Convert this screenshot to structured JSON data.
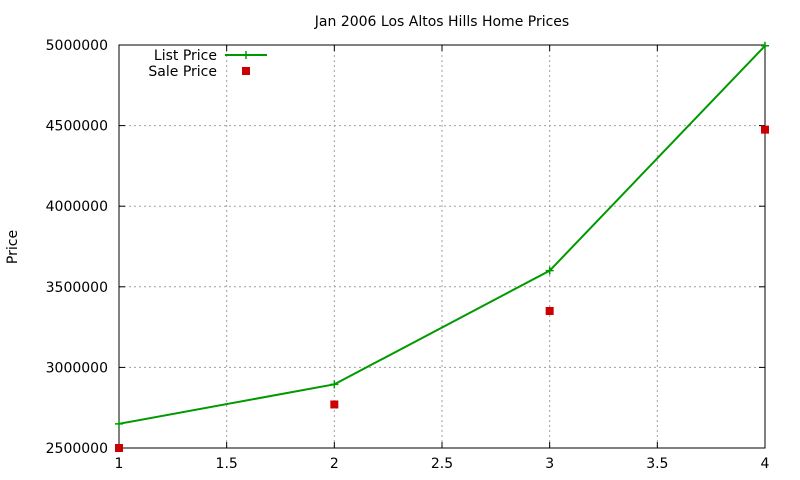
{
  "chart_data": {
    "type": "line",
    "title": "Jan 2006 Los Altos Hills Home Prices",
    "xlabel": "",
    "ylabel": "Price",
    "xlim": [
      1,
      4
    ],
    "ylim": [
      2500000,
      5000000
    ],
    "x_ticks": [
      1,
      1.5,
      2,
      2.5,
      3,
      3.5,
      4
    ],
    "x_tick_labels": [
      "1",
      "1.5",
      "2",
      "2.5",
      "3",
      "3.5",
      "4"
    ],
    "y_ticks": [
      2500000,
      3000000,
      3500000,
      4000000,
      4500000,
      5000000
    ],
    "y_tick_labels": [
      "2500000",
      "3000000",
      "3500000",
      "4000000",
      "4500000",
      "5000000"
    ],
    "grid": true,
    "legend_position": "top-left",
    "series": [
      {
        "name": "List Price",
        "style": "linespoints",
        "marker": "plus",
        "color": "#009900",
        "x": [
          1,
          2,
          3,
          4
        ],
        "y": [
          2650000,
          2895000,
          3600000,
          4995000
        ]
      },
      {
        "name": "Sale Price",
        "style": "points",
        "marker": "square",
        "color": "#cc0000",
        "x": [
          1,
          2,
          3,
          4
        ],
        "y": [
          2500000,
          2770000,
          3350000,
          4475000
        ]
      }
    ]
  }
}
